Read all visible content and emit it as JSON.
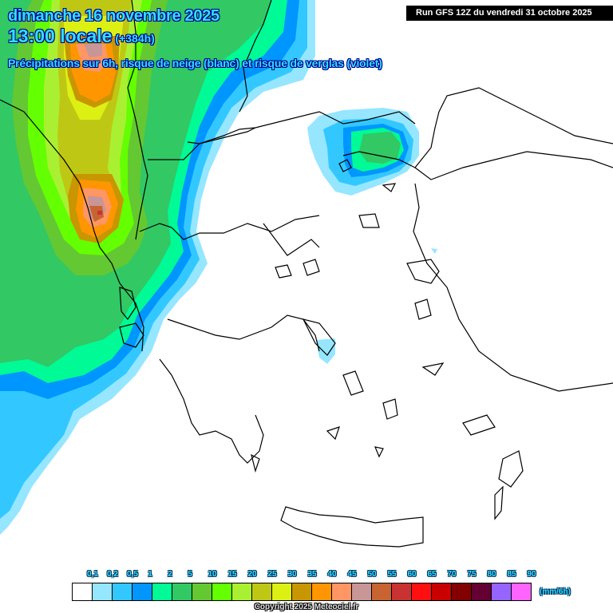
{
  "header": {
    "date": "dimanche 16 novembre 2025",
    "time": "13:00 locale",
    "lead": "(+384h)",
    "description": "Précipitations sur 6h, risque de neige (blanc) et risque de verglas (violet)",
    "run": "Run GFS 12Z du vendredi 31 octobre 2025"
  },
  "legend": {
    "unit": "(mm/6h)",
    "labels": [
      "0,1",
      "0,2",
      "0,5",
      "1",
      "2",
      "5",
      "10",
      "15",
      "20",
      "25",
      "30",
      "35",
      "40",
      "45",
      "50",
      "55",
      "60",
      "65",
      "70",
      "75",
      "80",
      "85",
      "90"
    ],
    "colors": [
      "#ffffff",
      "#96e6ff",
      "#32c8ff",
      "#0096ff",
      "#00fa96",
      "#32c864",
      "#64c832",
      "#64ff00",
      "#aaf032",
      "#bec814",
      "#dcf014",
      "#c89600",
      "#ff9600",
      "#ff9664",
      "#c89696",
      "#c86432",
      "#c83232",
      "#ff0f0f",
      "#c80000",
      "#820000",
      "#640032",
      "#9664ff",
      "#ff64ff"
    ]
  },
  "copyright": "Copyright 2025 Meteociel.fr",
  "map": {
    "region": "Greece / Balkans / Aegean",
    "features": [
      {
        "name": "Adriatic-Albania precipitation band",
        "max_class": "50-55 mm/6h"
      },
      {
        "name": "Northern Albania max",
        "max_class": "40-45 mm/6h"
      },
      {
        "name": "Southern Albania / Corfu max",
        "max_class": "55-60 mm/6h"
      },
      {
        "name": "Thrace / Bulgaria-Turkey border cell",
        "max_class": "5-10 mm/6h"
      },
      {
        "name": "Euboea light precip",
        "max_class": "0.1-0.2 mm/6h"
      }
    ]
  }
}
